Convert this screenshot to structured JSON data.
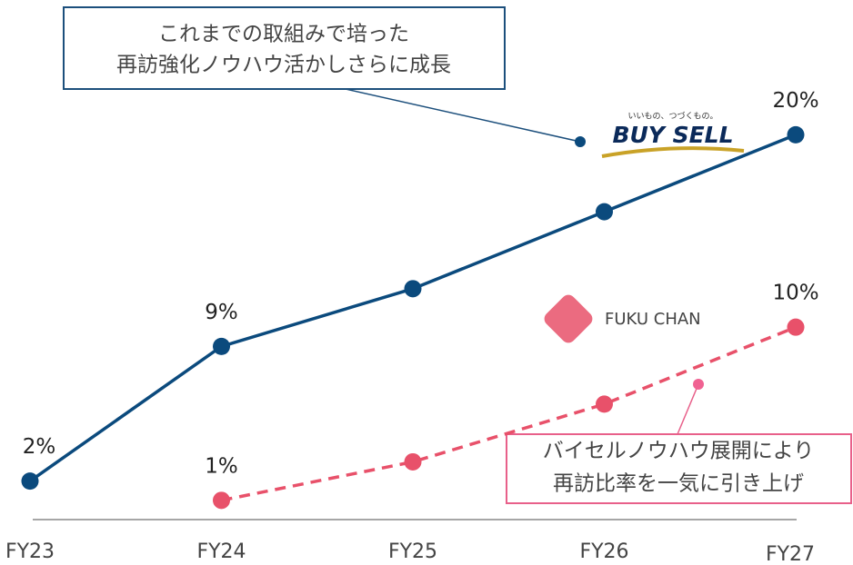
{
  "chart_data": {
    "type": "line",
    "categories": [
      "FY23",
      "FY24",
      "FY25",
      "FY26",
      "FY27"
    ],
    "series": [
      {
        "name": "BUY SELL",
        "color": "#0b4a7d",
        "dashed": false,
        "values": [
          2,
          9,
          12,
          16,
          20
        ],
        "value_labels": [
          "2%",
          "9%",
          null,
          null,
          "20%"
        ]
      },
      {
        "name": "FUKU CHAN",
        "color": "#e8516a",
        "dashed": true,
        "values": [
          null,
          1,
          3,
          6,
          10
        ],
        "value_labels": [
          null,
          "1%",
          null,
          null,
          "10%"
        ]
      }
    ],
    "ylim": [
      0,
      22
    ],
    "annotations": [
      {
        "lines": [
          "これまでの取組みで培った",
          "再訪強化ノウハウ活かしさらに成長"
        ]
      },
      {
        "lines": [
          "バイセルノウハウ展開により",
          "再訪比率を一気に引き上げ"
        ]
      }
    ],
    "logo_tagline": "いいもの、つづくもの。"
  }
}
